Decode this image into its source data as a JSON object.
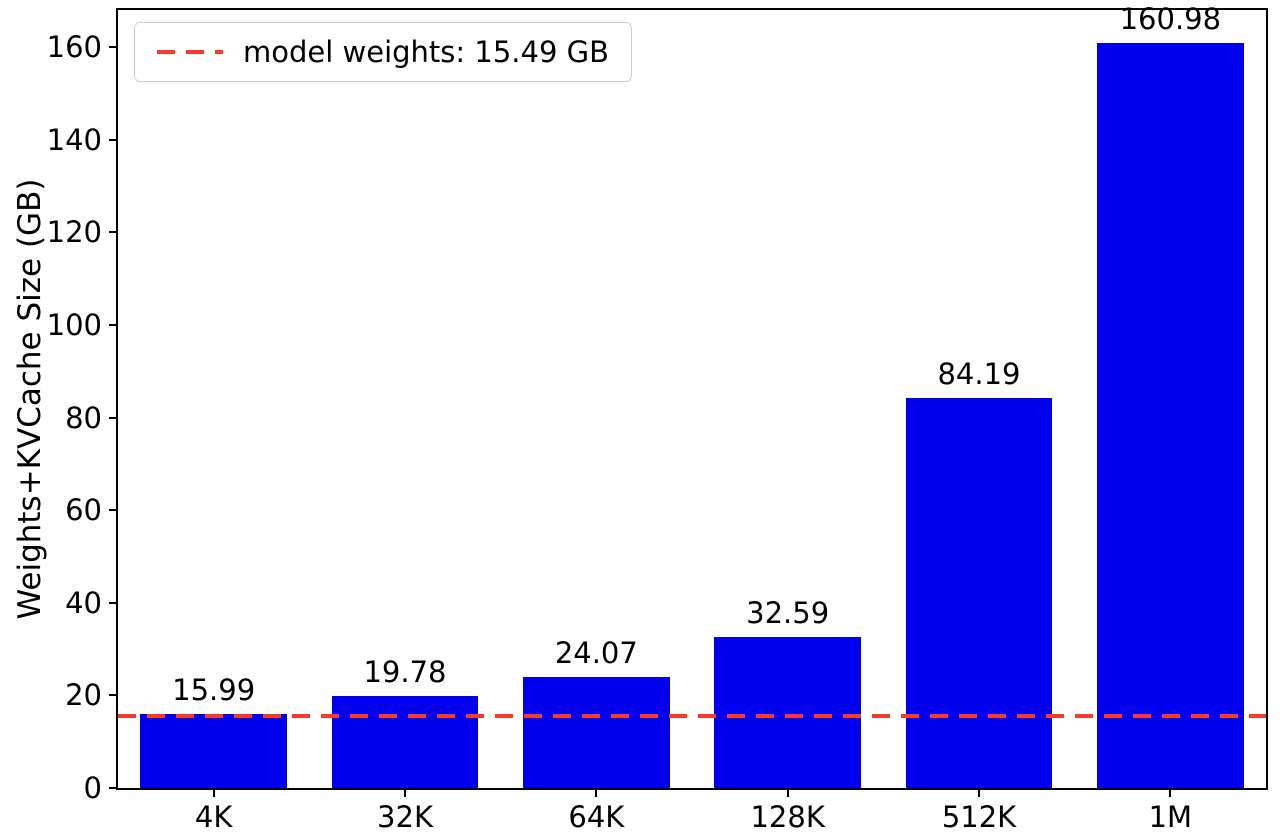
{
  "chart_data": {
    "type": "bar",
    "categories": [
      "4K",
      "32K",
      "64K",
      "128K",
      "512K",
      "1M"
    ],
    "values": [
      15.99,
      19.78,
      24.07,
      32.59,
      84.19,
      160.98
    ],
    "bar_labels": [
      "15.99",
      "19.78",
      "24.07",
      "32.59",
      "84.19",
      "160.98"
    ],
    "title": "",
    "xlabel": "",
    "ylabel": "Weights+KVCache Size (GB)",
    "ylim": [
      0,
      168
    ],
    "yticks": [
      0,
      20,
      40,
      60,
      80,
      100,
      120,
      140,
      160
    ],
    "bar_color": "#0000ee",
    "grid": false,
    "legend_position": "upper-left",
    "reference_line": {
      "value": 15.49,
      "style": "dashed",
      "color": "#f8392b",
      "label": "model weights: 15.49 GB"
    }
  }
}
